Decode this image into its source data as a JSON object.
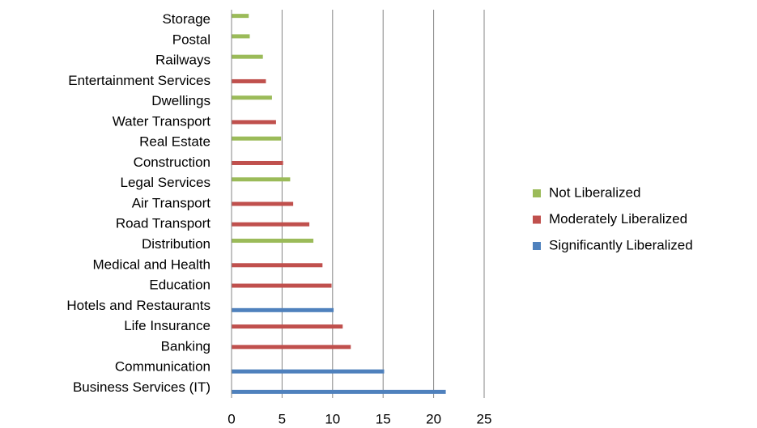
{
  "chart_data": {
    "type": "bar",
    "orientation": "horizontal",
    "categories": [
      "Business Services (IT)",
      "Communication",
      "Banking",
      "Life Insurance",
      "Hotels and Restaurants",
      "Education",
      "Medical and Health",
      "Distribution",
      "Road Transport",
      "Air Transport",
      "Legal Services",
      "Construction",
      "Real Estate",
      "Water Transport",
      "Dwellings",
      "Entertainment Services",
      "Railways",
      "Postal",
      "Storage"
    ],
    "series": [
      {
        "name": "Not Liberalized",
        "color": "#9bbb59",
        "values": [
          null,
          null,
          null,
          null,
          null,
          null,
          null,
          8.1,
          null,
          null,
          5.8,
          null,
          4.9,
          null,
          4.0,
          null,
          3.1,
          1.8,
          1.7
        ]
      },
      {
        "name": "Moderately Liberalized",
        "color": "#c0504d",
        "values": [
          null,
          null,
          11.8,
          11.0,
          null,
          9.9,
          9.0,
          null,
          7.7,
          6.1,
          null,
          5.1,
          null,
          4.4,
          null,
          3.4,
          null,
          null,
          null
        ]
      },
      {
        "name": "Significantly Liberalized",
        "color": "#4f81bd",
        "values": [
          21.2,
          15.1,
          null,
          null,
          10.1,
          null,
          null,
          null,
          null,
          null,
          null,
          null,
          null,
          null,
          null,
          null,
          null,
          null,
          null
        ]
      }
    ],
    "xlim": [
      0,
      25
    ],
    "xticks": [
      0,
      5,
      10,
      15,
      20,
      25
    ],
    "grid": true,
    "legend": "right"
  }
}
